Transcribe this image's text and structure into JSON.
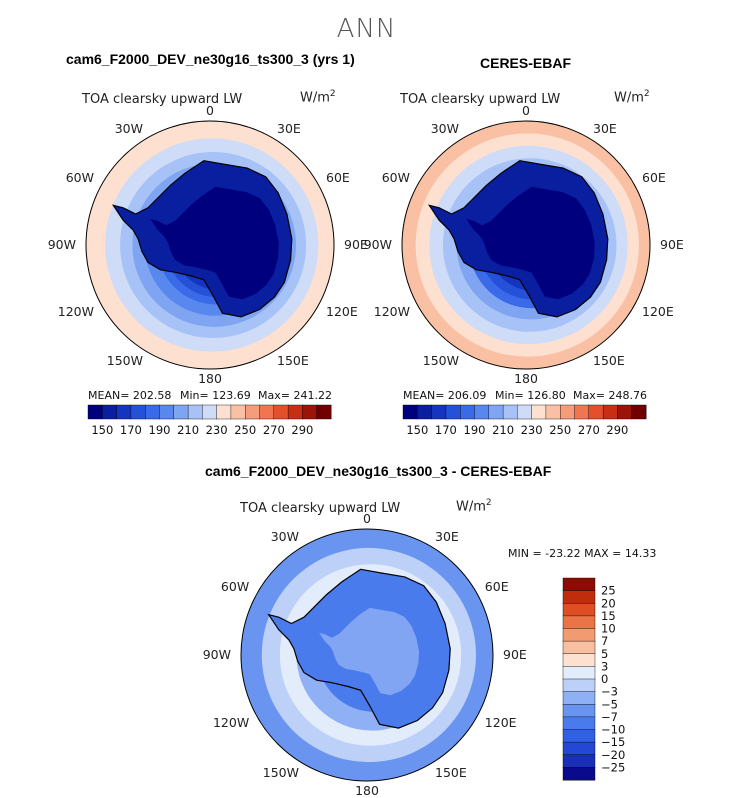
{
  "title": "ANN",
  "panels": [
    {
      "title": "cam6_F2000_DEV_ne30g16_ts300_3 (yrs 1)",
      "subtitle": "TOA clearsky upward LW",
      "units": "W/m",
      "units_exp": "2",
      "stats": {
        "mean": "MEAN= 202.58",
        "min": "Min= 123.69",
        "max": "Max= 241.22"
      }
    },
    {
      "title": "CERES-EBAF",
      "subtitle": "TOA clearsky upward LW",
      "units": "W/m",
      "units_exp": "2",
      "stats": {
        "mean": "MEAN= 206.09",
        "min": "Min= 126.80",
        "max": "Max= 248.76"
      }
    },
    {
      "title": "cam6_F2000_DEV_ne30g16_ts300_3 - CERES-EBAF",
      "subtitle": "TOA clearsky upward LW",
      "units": "W/m",
      "units_exp": "2",
      "stats": {
        "minmax": "MIN = -23.22 MAX =  14.33"
      }
    }
  ],
  "map_labels": [
    "0",
    "30E",
    "60E",
    "90E",
    "120E",
    "150E",
    "180",
    "150W",
    "120W",
    "90W",
    "60W",
    "30W"
  ],
  "chart_data": [
    {
      "type": "heatmap",
      "projection": "south polar stereographic",
      "title": "cam6_F2000_DEV_ne30g16_ts300_3 (yrs 1)",
      "variable": "TOA clearsky upward LW",
      "units": "W/m2",
      "mean": 202.58,
      "min": 123.69,
      "max": 241.22,
      "contour_levels": [
        150,
        160,
        170,
        180,
        190,
        200,
        210,
        220,
        230,
        240,
        250,
        260,
        270,
        280,
        290
      ],
      "colorbar_tick_labels": [
        "150",
        "170",
        "190",
        "210",
        "230",
        "250",
        "270",
        "290"
      ],
      "colors": [
        "#00007f",
        "#0a1ea0",
        "#1535c0",
        "#2550d8",
        "#3a6ae8",
        "#5888ee",
        "#7ea4f2",
        "#a6c2f6",
        "#cfdcf8",
        "#fde0d0",
        "#f9c0a4",
        "#f59c7a",
        "#ef7650",
        "#e4502c",
        "#c82e14",
        "#9c1408",
        "#700000"
      ],
      "rings": [
        {
          "r": 1.0,
          "value": 232
        },
        {
          "r": 0.86,
          "value": 225
        },
        {
          "r": 0.75,
          "value": 215
        },
        {
          "r": 0.66,
          "value": 205
        },
        {
          "r": 0.57,
          "value": 195
        },
        {
          "r": 0.48,
          "value": 185
        },
        {
          "r": 0.42,
          "value": 175
        },
        {
          "r": 0.36,
          "value": 162
        },
        {
          "r": 0.3,
          "value": 150
        }
      ]
    },
    {
      "type": "heatmap",
      "projection": "south polar stereographic",
      "title": "CERES-EBAF",
      "variable": "TOA clearsky upward LW",
      "units": "W/m2",
      "mean": 206.09,
      "min": 126.8,
      "max": 248.76,
      "contour_levels": [
        150,
        160,
        170,
        180,
        190,
        200,
        210,
        220,
        230,
        240,
        250,
        260,
        270,
        280,
        290
      ],
      "colorbar_tick_labels": [
        "150",
        "170",
        "190",
        "210",
        "230",
        "250",
        "270",
        "290"
      ],
      "colors": [
        "#00007f",
        "#0a1ea0",
        "#1535c0",
        "#2550d8",
        "#3a6ae8",
        "#5888ee",
        "#7ea4f2",
        "#a6c2f6",
        "#cfdcf8",
        "#fde0d0",
        "#f9c0a4",
        "#f59c7a",
        "#ef7650",
        "#e4502c",
        "#c82e14",
        "#9c1408",
        "#700000"
      ],
      "rings": [
        {
          "r": 1.0,
          "value": 245
        },
        {
          "r": 0.9,
          "value": 236
        },
        {
          "r": 0.8,
          "value": 226
        },
        {
          "r": 0.7,
          "value": 215
        },
        {
          "r": 0.6,
          "value": 200
        },
        {
          "r": 0.51,
          "value": 185
        },
        {
          "r": 0.44,
          "value": 172
        },
        {
          "r": 0.37,
          "value": 160
        },
        {
          "r": 0.31,
          "value": 150
        }
      ]
    },
    {
      "type": "heatmap",
      "projection": "south polar stereographic",
      "title": "cam6_F2000_DEV_ne30g16_ts300_3 - CERES-EBAF",
      "variable": "TOA clearsky upward LW",
      "units": "W/m2",
      "min": -23.22,
      "max": 14.33,
      "contour_levels": [
        -25,
        -20,
        -15,
        -10,
        -7,
        -5,
        -3,
        0,
        3,
        5,
        7,
        10,
        15,
        20,
        25
      ],
      "colorbar_tick_labels": [
        "25",
        "20",
        "15",
        "10",
        "7",
        "5",
        "3",
        "0",
        "−3",
        "−5",
        "−7",
        "−10",
        "−15",
        "−20",
        "−25"
      ],
      "colors": [
        "#0a0a8c",
        "#1a2fb8",
        "#2547d6",
        "#3060e6",
        "#4a7bec",
        "#6994f0",
        "#8fb0f4",
        "#bcd0f8",
        "#e2ecfb",
        "#fce0d0",
        "#f8bfa0",
        "#f29a70",
        "#ea7446",
        "#dd4e22",
        "#c02c0c",
        "#8c0c00"
      ],
      "rings": [
        {
          "r": 1.0,
          "value": -6
        },
        {
          "r": 0.85,
          "value": -2
        },
        {
          "r": 0.72,
          "value": 1
        },
        {
          "r": 0.6,
          "value": -5
        },
        {
          "r": 0.45,
          "value": -8
        }
      ]
    }
  ]
}
